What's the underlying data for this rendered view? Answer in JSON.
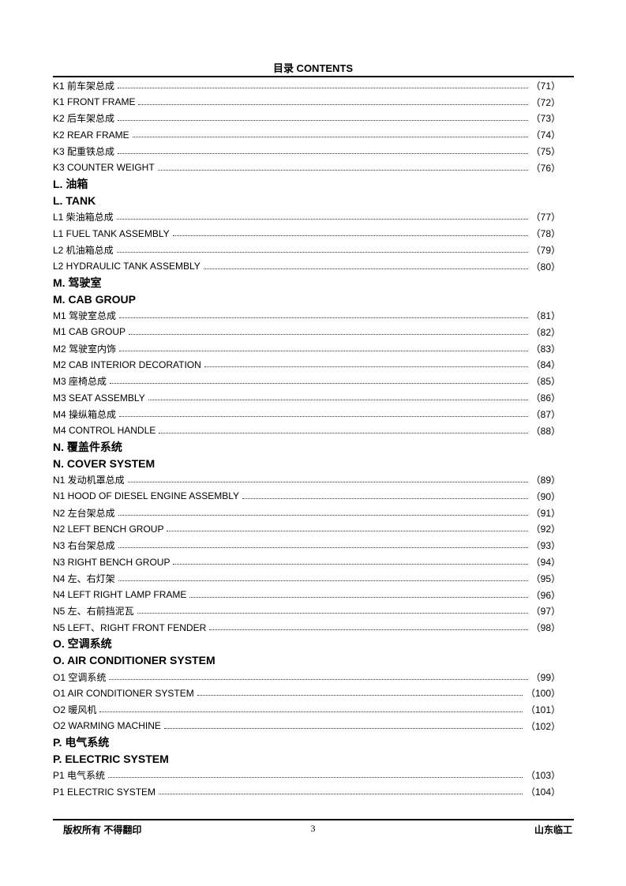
{
  "header": {
    "title": "目录  CONTENTS"
  },
  "entries": [
    {
      "label": "K1 前车架总成",
      "page": "（71）"
    },
    {
      "label": "K1 FRONT FRAME",
      "page": "（72）"
    },
    {
      "label": "K2 后车架总成",
      "page": "（73）"
    },
    {
      "label": "K2 REAR FRAME",
      "page": "（74）"
    },
    {
      "label": "K3 配重铁总成",
      "page": "（75）"
    },
    {
      "label": "K3 COUNTER WEIGHT",
      "page": "（76）"
    },
    {
      "heading": "L. 油箱"
    },
    {
      "heading": "L. TANK"
    },
    {
      "label": "L1 柴油箱总成",
      "page": "（77）"
    },
    {
      "label": "L1 FUEL TANK ASSEMBLY",
      "page": "（78）"
    },
    {
      "label": "L2 机油箱总成",
      "page": "（79）"
    },
    {
      "label": "L2 HYDRAULIC TANK ASSEMBLY",
      "page": "（80）"
    },
    {
      "heading": "M. 驾驶室"
    },
    {
      "heading": "M. CAB GROUP"
    },
    {
      "label": "M1 驾驶室总成",
      "page": "（81）"
    },
    {
      "label": "M1 CAB GROUP",
      "page": "（82）"
    },
    {
      "label": "M2 驾驶室内饰",
      "page": "（83）"
    },
    {
      "label": "M2 CAB INTERIOR DECORATION",
      "page": "（84）"
    },
    {
      "label": "M3 座椅总成",
      "page": "（85）"
    },
    {
      "label": "M3 SEAT ASSEMBLY",
      "page": "（86）"
    },
    {
      "label": "M4 操纵箱总成",
      "page": "（87）"
    },
    {
      "label": "M4 CONTROL HANDLE",
      "page": "（88）"
    },
    {
      "heading": "N. 覆盖件系统"
    },
    {
      "heading": "N. COVER SYSTEM"
    },
    {
      "label": "N1 发动机罩总成",
      "page": "（89）"
    },
    {
      "label": "N1 HOOD OF DIESEL ENGINE ASSEMBLY",
      "page": "（90）"
    },
    {
      "label": "N2 左台架总成",
      "page": "（91）"
    },
    {
      "label": "N2 LEFT BENCH GROUP",
      "page": "（92）"
    },
    {
      "label": "N3 右台架总成",
      "page": "（93）"
    },
    {
      "label": "N3 RIGHT BENCH GROUP",
      "page": "（94）"
    },
    {
      "label": "N4 左、右灯架",
      "page": "（95）"
    },
    {
      "label": "N4 LEFT RIGHT LAMP FRAME",
      "page": "（96）"
    },
    {
      "label": "N5 左、右前挡泥瓦",
      "page": "（97）"
    },
    {
      "label": "N5 LEFT、RIGHT FRONT FENDER",
      "page": "（98）"
    },
    {
      "heading": "O. 空调系统"
    },
    {
      "heading": "O. AIR CONDITIONER SYSTEM"
    },
    {
      "label": "O1 空调系统",
      "page": "（99）"
    },
    {
      "label": "O1 AIR CONDITIONER SYSTEM",
      "page": "（100）"
    },
    {
      "label": "O2 暖风机",
      "page": "（101）"
    },
    {
      "label": "O2 WARMING MACHINE",
      "page": "（102）"
    },
    {
      "heading": "P. 电气系统"
    },
    {
      "heading": "P. ELECTRIC SYSTEM"
    },
    {
      "label": "P1 电气系统",
      "page": "（103）"
    },
    {
      "label": "P1 ELECTRIC SYSTEM",
      "page": "（104）"
    }
  ],
  "footer": {
    "left": "版权所有 不得翻印",
    "page_number": "3",
    "right": "山东临工"
  }
}
